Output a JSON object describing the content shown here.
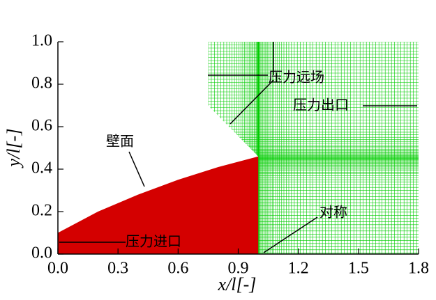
{
  "chart_data": {
    "type": "mesh",
    "xlabel": "x/l[-]",
    "ylabel": "y/l[-]",
    "xlim": [
      0,
      1.8
    ],
    "ylim": [
      0,
      1.0
    ],
    "xticks": [
      {
        "value": 0,
        "label": "0.0"
      },
      0.3,
      0.6,
      0.9,
      {
        "value": 1.2,
        "label": "1.2"
      },
      1.5,
      1.8
    ],
    "yticks": [
      {
        "value": 0,
        "label": "0.0"
      },
      0.2,
      0.4,
      0.6,
      0.8,
      {
        "value": 1.0,
        "label": "1.0"
      }
    ],
    "wall": {
      "color": "#d40000",
      "x": [
        0,
        0.2,
        0.4,
        0.6,
        0.8,
        1.0
      ],
      "y": [
        0.1,
        0.2,
        0.28,
        0.35,
        0.41,
        0.46
      ]
    },
    "mesh": {
      "color": "#00cc00",
      "x": [
        0.75,
        0.75,
        1.0,
        1.0,
        1.8,
        1.8
      ],
      "y": [
        1.0,
        0.7,
        0.46,
        0,
        0,
        1.0
      ]
    },
    "annotations": [
      "压力远场",
      "压力出口",
      "壁面",
      "对称",
      "压力进口"
    ]
  }
}
